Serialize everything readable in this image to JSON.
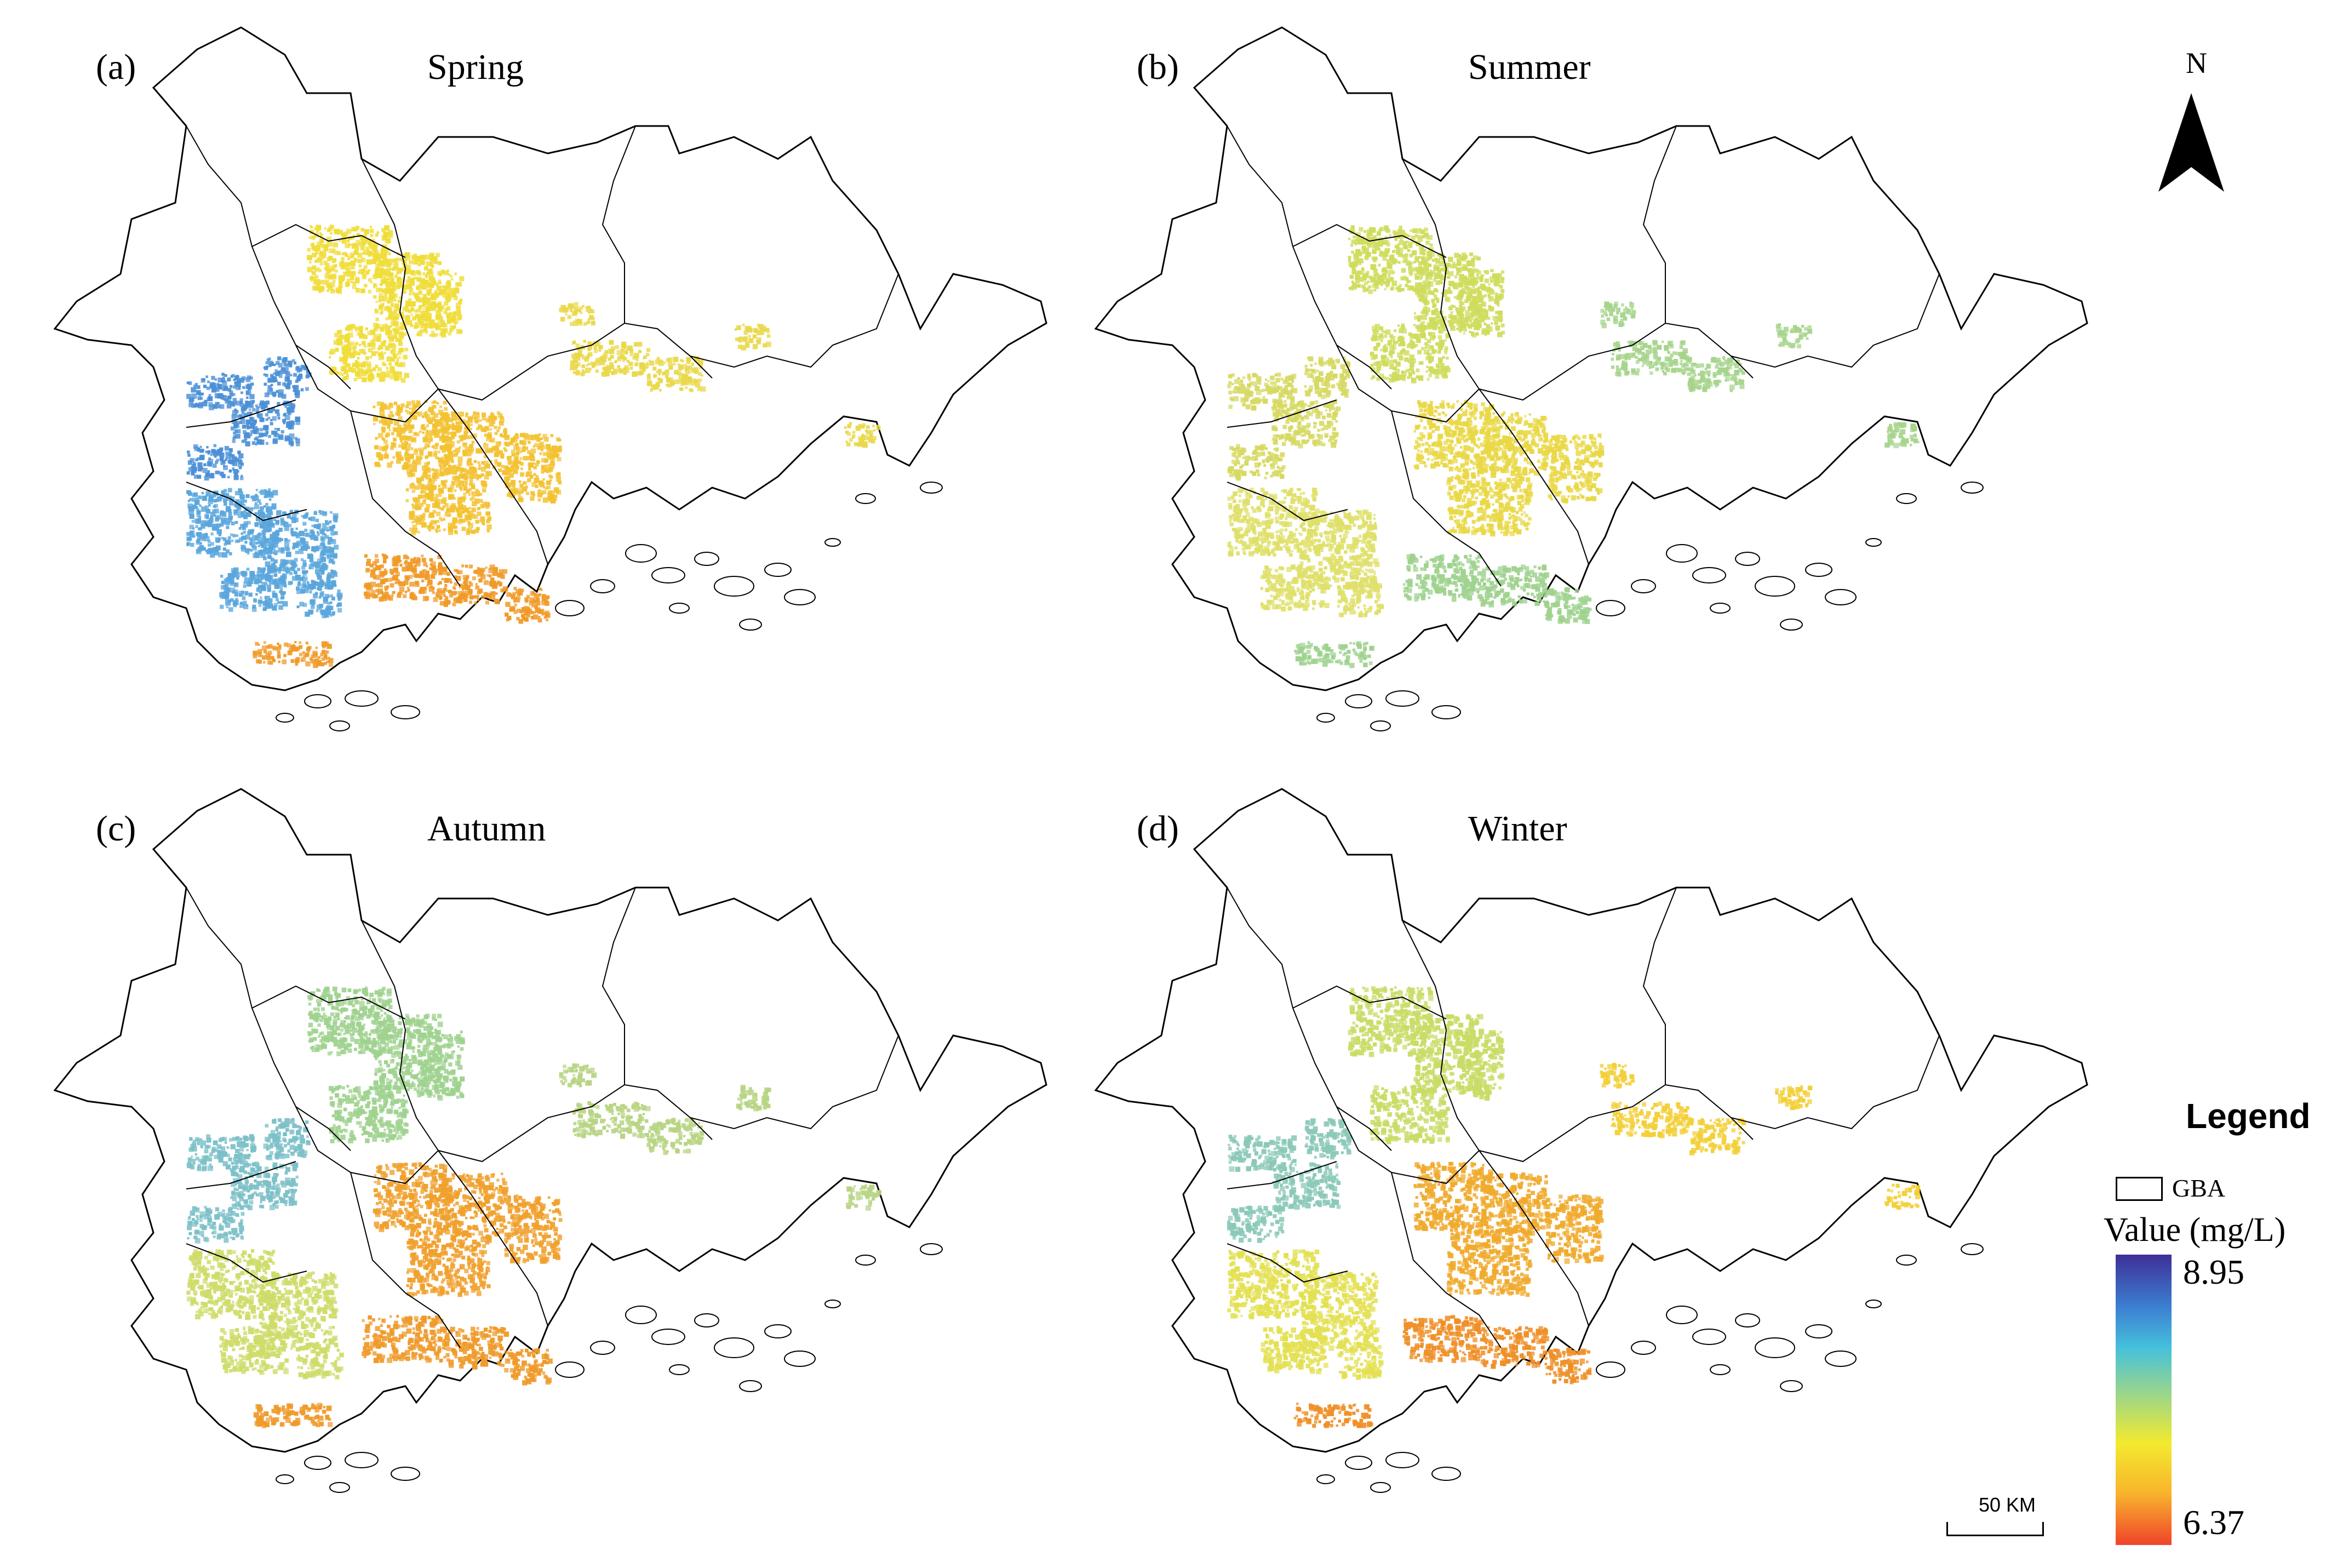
{
  "panels": [
    {
      "id": "a",
      "letter": "(a)",
      "title": "Spring",
      "clusters": [
        {
          "region": "north-central",
          "color": "#f0dd3a"
        },
        {
          "region": "west",
          "color": "#4a8fd6"
        },
        {
          "region": "southwest",
          "color": "#5aa6dc"
        },
        {
          "region": "central",
          "color": "#f3c232"
        },
        {
          "region": "south",
          "color": "#f09a28"
        },
        {
          "region": "east",
          "color": "#e9d84a"
        }
      ]
    },
    {
      "id": "b",
      "letter": "(b)",
      "title": "Summer",
      "clusters": [
        {
          "region": "north-central",
          "color": "#cfdc5c"
        },
        {
          "region": "west",
          "color": "#d6d962"
        },
        {
          "region": "southwest",
          "color": "#dfe06a"
        },
        {
          "region": "central",
          "color": "#e9d846"
        },
        {
          "region": "south",
          "color": "#9ed28e"
        },
        {
          "region": "east",
          "color": "#a6d48c"
        }
      ]
    },
    {
      "id": "c",
      "letter": "(c)",
      "title": "Autumn",
      "clusters": [
        {
          "region": "north-central",
          "color": "#9fd28f"
        },
        {
          "region": "west",
          "color": "#7cc0c8"
        },
        {
          "region": "southwest",
          "color": "#cfdc6a"
        },
        {
          "region": "central",
          "color": "#f0a02c"
        },
        {
          "region": "south",
          "color": "#ef9a2a"
        },
        {
          "region": "east",
          "color": "#b7d482"
        }
      ]
    },
    {
      "id": "d",
      "letter": "(d)",
      "title": "Winter",
      "clusters": [
        {
          "region": "north-central",
          "color": "#c9dc66"
        },
        {
          "region": "west",
          "color": "#8ac8b8"
        },
        {
          "region": "southwest",
          "color": "#e3e052"
        },
        {
          "region": "central",
          "color": "#f0aa2c"
        },
        {
          "region": "south",
          "color": "#ef8f28"
        },
        {
          "region": "east",
          "color": "#f3cf36"
        }
      ]
    }
  ],
  "north_arrow": {
    "label": "N"
  },
  "legend": {
    "title": "Legend",
    "boundary_label": "GBA",
    "value_label": "Value (mg/L)",
    "max": "8.95",
    "min": "6.37",
    "ramp_colors": [
      "#3e2f98",
      "#3c7fd1",
      "#45c0dc",
      "#9bd68a",
      "#f3ea2e",
      "#f8b52c",
      "#f0432b"
    ]
  },
  "scale_bar": {
    "label": "50 KM"
  }
}
